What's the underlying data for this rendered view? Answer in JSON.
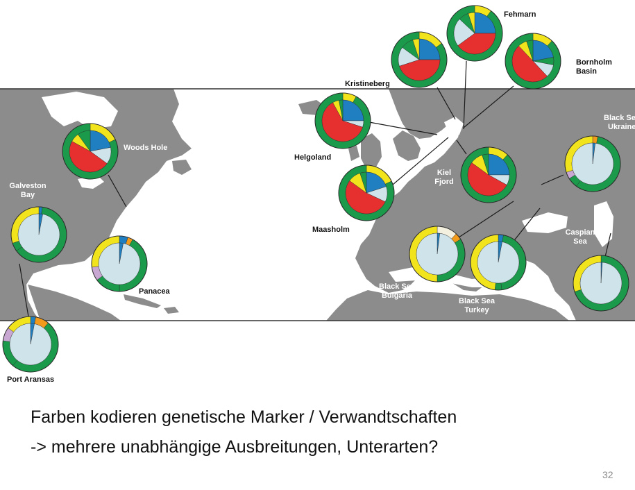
{
  "colors": {
    "sea": "#ffffff",
    "land": "#8c8c8c",
    "map_frame": "#333333",
    "label_on_map": "#ffffff",
    "label_off_map": "#111111",
    "marker_colors": [
      "#1f7fc0",
      "#e63030",
      "#cfe3ea",
      "#1a9a4a",
      "#f2e41c",
      "#f19a1b",
      "#c9a7d3",
      "#f4f0df"
    ]
  },
  "sites": [
    {
      "id": "fehmarn",
      "label": "Fehmarn",
      "inner": [
        [
          0.25,
          "#1f7fc0"
        ],
        [
          0.4,
          "#e63030"
        ],
        [
          0.22,
          "#cfe3ea"
        ],
        [
          0.08,
          "#1a9a4a"
        ],
        [
          0.05,
          "#f2e41c"
        ]
      ],
      "outer": [
        [
          0.1,
          "#f2e41c"
        ],
        [
          0.9,
          "#1a9a4a"
        ]
      ]
    },
    {
      "id": "kristineberg",
      "label": "Kristineberg",
      "inner": [
        [
          0.25,
          "#1f7fc0"
        ],
        [
          0.45,
          "#e63030"
        ],
        [
          0.15,
          "#cfe3ea"
        ],
        [
          0.1,
          "#1a9a4a"
        ],
        [
          0.05,
          "#f2e41c"
        ]
      ],
      "outer": [
        [
          0.15,
          "#f2e41c"
        ],
        [
          0.85,
          "#1a9a4a"
        ]
      ]
    },
    {
      "id": "bornholm",
      "label": "Bornholm Basin",
      "inner": [
        [
          0.22,
          "#1f7fc0"
        ],
        [
          0.06,
          "#1a9a4a"
        ],
        [
          0.1,
          "#cfe3ea"
        ],
        [
          0.5,
          "#e63030"
        ],
        [
          0.07,
          "#f2e41c"
        ],
        [
          0.05,
          "#1a9a4a"
        ]
      ],
      "outer": [
        [
          0.12,
          "#f2e41c"
        ],
        [
          0.88,
          "#1a9a4a"
        ]
      ]
    },
    {
      "id": "helgoland",
      "label": "Helgoland",
      "inner": [
        [
          0.25,
          "#1f7fc0"
        ],
        [
          0.05,
          "#cfe3ea"
        ],
        [
          0.62,
          "#e63030"
        ],
        [
          0.05,
          "#f2e41c"
        ],
        [
          0.03,
          "#1a9a4a"
        ]
      ],
      "outer": [
        [
          0.08,
          "#f2e41c"
        ],
        [
          0.92,
          "#1a9a4a"
        ]
      ]
    },
    {
      "id": "woods_hole",
      "label": "Woods Hole",
      "inner": [
        [
          0.22,
          "#1f7fc0"
        ],
        [
          0.13,
          "#cfe3ea"
        ],
        [
          0.48,
          "#e63030"
        ],
        [
          0.07,
          "#f2e41c"
        ],
        [
          0.1,
          "#1a9a4a"
        ]
      ],
      "outer": [
        [
          0.18,
          "#f2e41c"
        ],
        [
          0.82,
          "#1a9a4a"
        ]
      ]
    },
    {
      "id": "kiel_fjord",
      "label": "Kiel Fjord",
      "inner": [
        [
          0.25,
          "#1f7fc0"
        ],
        [
          0.08,
          "#cfe3ea"
        ],
        [
          0.52,
          "#e63030"
        ],
        [
          0.1,
          "#f2e41c"
        ],
        [
          0.05,
          "#1a9a4a"
        ]
      ],
      "outer": [
        [
          0.12,
          "#f2e41c"
        ],
        [
          0.88,
          "#1a9a4a"
        ]
      ]
    },
    {
      "id": "maasholm",
      "label": "Maasholm",
      "inner": [
        [
          0.2,
          "#1f7fc0"
        ],
        [
          0.12,
          "#cfe3ea"
        ],
        [
          0.53,
          "#e63030"
        ],
        [
          0.1,
          "#f2e41c"
        ],
        [
          0.05,
          "#1a9a4a"
        ]
      ],
      "outer": [
        [
          0.18,
          "#f2e41c"
        ],
        [
          0.82,
          "#1a9a4a"
        ]
      ]
    },
    {
      "id": "galveston_bay",
      "label": "Galveston Bay",
      "inner": [
        [
          0.03,
          "#1f7fc0"
        ],
        [
          0.97,
          "#cfe3ea"
        ]
      ],
      "outer": [
        [
          0.02,
          "#1f7fc0"
        ],
        [
          0.63,
          "#1a9a4a"
        ],
        [
          0.05,
          "#1a9a4a"
        ],
        [
          0.3,
          "#f2e41c"
        ]
      ]
    },
    {
      "id": "panacea",
      "label": "Panacea",
      "inner": [
        [
          0.03,
          "#1f7fc0"
        ],
        [
          0.97,
          "#cfe3ea"
        ]
      ],
      "outer": [
        [
          0.05,
          "#1f7fc0"
        ],
        [
          0.03,
          "#f19a1b"
        ],
        [
          0.42,
          "#1a9a4a"
        ],
        [
          0.15,
          "#1a9a4a"
        ],
        [
          0.08,
          "#c9a7d3"
        ],
        [
          0.27,
          "#f2e41c"
        ]
      ]
    },
    {
      "id": "port_aransas",
      "label": "Port Aransas",
      "inner": [
        [
          0.03,
          "#1f7fc0"
        ],
        [
          0.97,
          "#cfe3ea"
        ]
      ],
      "outer": [
        [
          0.03,
          "#1f7fc0"
        ],
        [
          0.08,
          "#f19a1b"
        ],
        [
          0.5,
          "#1a9a4a"
        ],
        [
          0.16,
          "#1a9a4a"
        ],
        [
          0.08,
          "#c9a7d3"
        ],
        [
          0.15,
          "#f2e41c"
        ]
      ]
    },
    {
      "id": "black_sea_ukraine",
      "label": "Black Sea Ukraine",
      "inner": [
        [
          0.02,
          "#1f7fc0"
        ],
        [
          0.98,
          "#cfe3ea"
        ]
      ],
      "outer": [
        [
          0.03,
          "#f19a1b"
        ],
        [
          0.57,
          "#1a9a4a"
        ],
        [
          0.06,
          "#1a9a4a"
        ],
        [
          0.04,
          "#c9a7d3"
        ],
        [
          0.3,
          "#f2e41c"
        ]
      ]
    },
    {
      "id": "caspian_sea",
      "label": "Caspian Sea",
      "inner": [
        [
          0.01,
          "#1f7fc0"
        ],
        [
          0.99,
          "#cfe3ea"
        ]
      ],
      "outer": [
        [
          0.7,
          "#1a9a4a"
        ],
        [
          0.3,
          "#f2e41c"
        ]
      ]
    },
    {
      "id": "black_sea_bulgaria",
      "label": "Black Sea Bulgaria",
      "inner": [
        [
          0.02,
          "#1f7fc0"
        ],
        [
          0.98,
          "#cfe3ea"
        ]
      ],
      "outer": [
        [
          0.12,
          "#f4f0df"
        ],
        [
          0.04,
          "#f19a1b"
        ],
        [
          0.34,
          "#1a9a4a"
        ],
        [
          0.5,
          "#f2e41c"
        ]
      ]
    },
    {
      "id": "black_sea_turkey",
      "label": "Black Sea Turkey",
      "inner": [
        [
          0.03,
          "#1f7fc0"
        ],
        [
          0.97,
          "#cfe3ea"
        ]
      ],
      "outer": [
        [
          0.03,
          "#1f7fc0"
        ],
        [
          0.45,
          "#1a9a4a"
        ],
        [
          0.04,
          "#1a9a4a"
        ],
        [
          0.48,
          "#f2e41c"
        ]
      ]
    }
  ],
  "caption": {
    "line1": "Farben kodieren genetische Marker / Verwandtschaften",
    "line2": "-> mehrere unabhängige Ausbreitungen, Unterarten?"
  },
  "page_number": "32"
}
